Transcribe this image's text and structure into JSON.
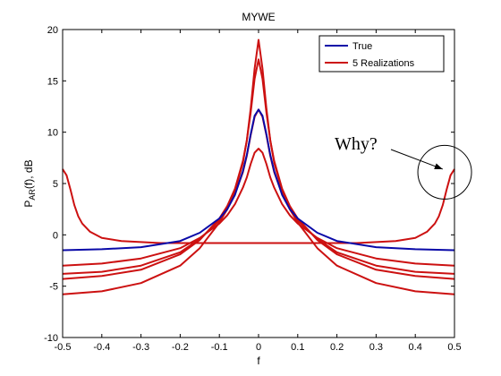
{
  "chart_data": {
    "type": "line",
    "title": "MYWE",
    "xlabel": "f",
    "ylabel": {
      "main": "P",
      "sub": "AR",
      "rest": "(f), dB"
    },
    "xlim": [
      -0.5,
      0.5
    ],
    "ylim": [
      -10,
      20
    ],
    "xticks": [
      -0.5,
      -0.4,
      -0.3,
      -0.2,
      -0.1,
      0,
      0.1,
      0.2,
      0.3,
      0.4,
      0.5
    ],
    "xtick_labels": [
      "-0.5",
      "-0.4",
      "-0.3",
      "-0.2",
      "-0.1",
      "0",
      "0.1",
      "0.2",
      "0.3",
      "0.4",
      "0.5"
    ],
    "yticks": [
      -10,
      -5,
      0,
      5,
      10,
      15,
      20
    ],
    "ytick_labels": [
      "-10",
      "-5",
      "0",
      "5",
      "10",
      "15",
      "20"
    ],
    "grid": false,
    "legend_position": "top-right",
    "legend": [
      {
        "label": "True",
        "color": "#0a0aa8"
      },
      {
        "label": "5 Realizations",
        "color": "#cc1111"
      }
    ],
    "annotation": {
      "text": "Why?",
      "arrow_to": [
        0.47,
        6.4
      ],
      "circle_center": [
        0.475,
        6.1
      ]
    },
    "series": [
      {
        "name": "True",
        "color": "#0a0aa8",
        "x": [
          -0.5,
          -0.4,
          -0.3,
          -0.2,
          -0.15,
          -0.1,
          -0.08,
          -0.06,
          -0.04,
          -0.03,
          -0.02,
          -0.01,
          0,
          0.01,
          0.02,
          0.03,
          0.04,
          0.06,
          0.08,
          0.1,
          0.15,
          0.2,
          0.3,
          0.4,
          0.5
        ],
        "y": [
          -1.5,
          -1.4,
          -1.2,
          -0.6,
          0.2,
          1.6,
          2.5,
          3.9,
          6.2,
          7.8,
          9.8,
          11.6,
          12.2,
          11.6,
          9.8,
          7.8,
          6.2,
          3.9,
          2.5,
          1.6,
          0.2,
          -0.6,
          -1.2,
          -1.4,
          -1.5
        ]
      },
      {
        "color": "#cc1111",
        "x": [
          -0.5,
          -0.49,
          -0.48,
          -0.47,
          -0.46,
          -0.45,
          -0.43,
          -0.4,
          -0.35,
          -0.3,
          -0.25,
          -0.2,
          -0.15,
          -0.1,
          -0.08,
          -0.06,
          -0.04,
          -0.03,
          -0.02,
          -0.01,
          0,
          0.01,
          0.02,
          0.03,
          0.04,
          0.06,
          0.08,
          0.1,
          0.15,
          0.2,
          0.25,
          0.3,
          0.35,
          0.4,
          0.43,
          0.45,
          0.46,
          0.47,
          0.48,
          0.49,
          0.5
        ],
        "y": [
          6.4,
          5.8,
          4.4,
          2.9,
          1.8,
          1.1,
          0.3,
          -0.3,
          -0.6,
          -0.7,
          -0.8,
          -0.8,
          -0.8,
          -0.8,
          -0.8,
          -0.8,
          -0.8,
          -0.8,
          -0.8,
          -0.8,
          -0.8,
          -0.8,
          -0.8,
          -0.8,
          -0.8,
          -0.8,
          -0.8,
          -0.8,
          -0.8,
          -0.8,
          -0.8,
          -0.7,
          -0.6,
          -0.3,
          0.3,
          1.1,
          1.8,
          2.9,
          4.4,
          5.8,
          6.4
        ]
      },
      {
        "color": "#cc1111",
        "x": [
          -0.5,
          -0.4,
          -0.3,
          -0.2,
          -0.15,
          -0.1,
          -0.08,
          -0.06,
          -0.04,
          -0.03,
          -0.02,
          -0.01,
          0,
          0.01,
          0.02,
          0.03,
          0.04,
          0.06,
          0.08,
          0.1,
          0.15,
          0.2,
          0.3,
          0.4,
          0.5
        ],
        "y": [
          -5.8,
          -5.5,
          -4.7,
          -3.0,
          -1.3,
          1.2,
          2.5,
          4.3,
          7.0,
          9.2,
          12.3,
          16.2,
          19.0,
          16.2,
          12.3,
          9.2,
          7.0,
          4.3,
          2.5,
          1.2,
          -1.3,
          -3.0,
          -4.7,
          -5.5,
          -5.8
        ]
      },
      {
        "color": "#cc1111",
        "x": [
          -0.5,
          -0.4,
          -0.3,
          -0.2,
          -0.15,
          -0.1,
          -0.08,
          -0.06,
          -0.04,
          -0.03,
          -0.02,
          -0.01,
          0,
          0.01,
          0.02,
          0.03,
          0.04,
          0.06,
          0.08,
          0.1,
          0.15,
          0.2,
          0.3,
          0.4,
          0.5
        ],
        "y": [
          -4.3,
          -4.0,
          -3.4,
          -1.9,
          -0.5,
          1.6,
          2.8,
          4.5,
          7.2,
          9.2,
          11.9,
          15.2,
          17.1,
          15.2,
          11.9,
          9.2,
          7.2,
          4.5,
          2.8,
          1.6,
          -0.5,
          -1.9,
          -3.4,
          -4.0,
          -4.3
        ]
      },
      {
        "color": "#cc1111",
        "x": [
          -0.5,
          -0.4,
          -0.3,
          -0.2,
          -0.15,
          -0.1,
          -0.08,
          -0.06,
          -0.04,
          -0.03,
          -0.02,
          -0.01,
          0,
          0.01,
          0.02,
          0.03,
          0.04,
          0.06,
          0.08,
          0.1,
          0.15,
          0.2,
          0.3,
          0.4,
          0.5
        ],
        "y": [
          -3.8,
          -3.6,
          -3.0,
          -1.7,
          -0.4,
          1.4,
          2.5,
          4.0,
          6.1,
          7.7,
          9.7,
          11.5,
          12.2,
          11.5,
          9.7,
          7.7,
          6.1,
          4.0,
          2.5,
          1.4,
          -0.4,
          -1.7,
          -3.0,
          -3.6,
          -3.8
        ]
      },
      {
        "color": "#cc1111",
        "x": [
          -0.5,
          -0.4,
          -0.3,
          -0.2,
          -0.15,
          -0.1,
          -0.08,
          -0.06,
          -0.04,
          -0.03,
          -0.02,
          -0.01,
          0,
          0.01,
          0.02,
          0.03,
          0.04,
          0.06,
          0.08,
          0.1,
          0.15,
          0.2,
          0.3,
          0.4,
          0.5
        ],
        "y": [
          -3.0,
          -2.8,
          -2.3,
          -1.3,
          -0.3,
          1.1,
          1.9,
          3.0,
          4.6,
          5.6,
          6.9,
          8.0,
          8.4,
          8.0,
          6.9,
          5.6,
          4.6,
          3.0,
          1.9,
          1.1,
          -0.3,
          -1.3,
          -2.3,
          -2.8,
          -3.0
        ]
      }
    ]
  }
}
